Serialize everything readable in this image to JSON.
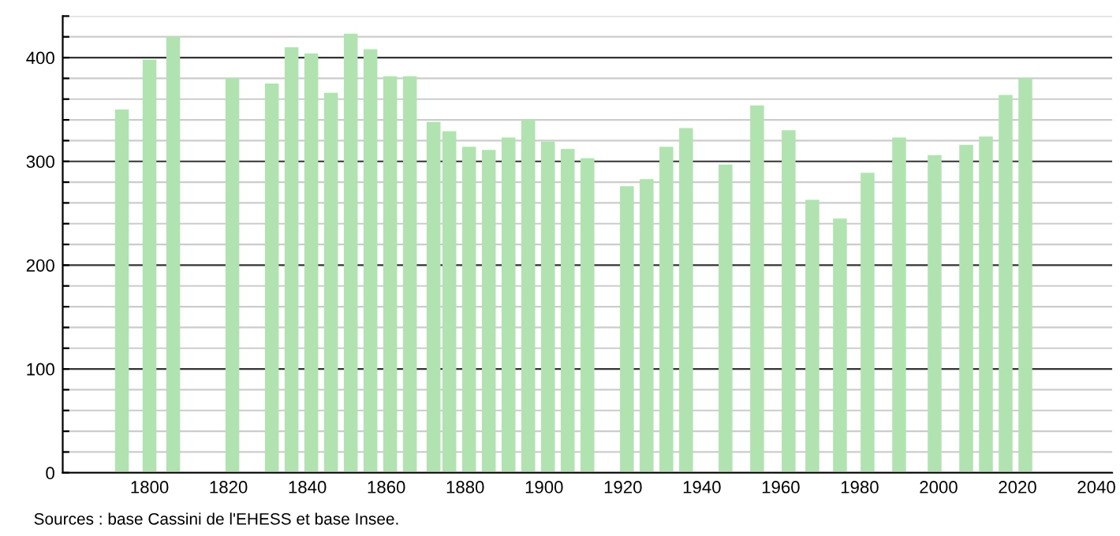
{
  "chart_data": {
    "type": "bar",
    "x": [
      1793,
      1800,
      1806,
      1821,
      1831,
      1836,
      1841,
      1846,
      1851,
      1856,
      1861,
      1866,
      1872,
      1876,
      1881,
      1886,
      1891,
      1896,
      1901,
      1906,
      1911,
      1921,
      1926,
      1931,
      1936,
      1946,
      1954,
      1962,
      1968,
      1975,
      1982,
      1990,
      1999,
      2007,
      2012,
      2017,
      2022
    ],
    "values": [
      350,
      398,
      420,
      380,
      375,
      410,
      404,
      366,
      423,
      408,
      382,
      382,
      338,
      329,
      314,
      311,
      323,
      340,
      319,
      312,
      303,
      276,
      283,
      314,
      332,
      297,
      354,
      330,
      263,
      245,
      289,
      323,
      306,
      316,
      324,
      364,
      380
    ],
    "color": "#b0e3b0",
    "xlim": [
      1778,
      2044
    ],
    "xticks": [
      1800,
      1820,
      1840,
      1860,
      1880,
      1900,
      1920,
      1940,
      1960,
      1980,
      2000,
      2020,
      2040
    ],
    "ylim": [
      0,
      440
    ],
    "yticks": [
      0,
      {
        "value": 20,
        "label": null
      },
      {
        "value": 40,
        "label": null
      },
      {
        "value": 60,
        "label": null
      },
      {
        "value": 80,
        "label": null
      },
      100,
      {
        "value": 120,
        "label": null
      },
      {
        "value": 140,
        "label": null
      },
      {
        "value": 160,
        "label": null
      },
      {
        "value": 180,
        "label": null
      },
      200,
      {
        "value": 220,
        "label": null
      },
      {
        "value": 240,
        "label": null
      },
      {
        "value": 260,
        "label": null
      },
      {
        "value": 280,
        "label": null
      },
      300,
      {
        "value": 320,
        "label": null
      },
      {
        "value": 340,
        "label": null
      },
      {
        "value": 360,
        "label": null
      },
      {
        "value": 380,
        "label": null
      },
      400,
      {
        "value": 420,
        "label": null
      },
      {
        "value": 440,
        "label": null
      }
    ],
    "grid": "y",
    "annotations": [
      "Sources : base Cassini de l'EHESS et base Insee."
    ]
  }
}
